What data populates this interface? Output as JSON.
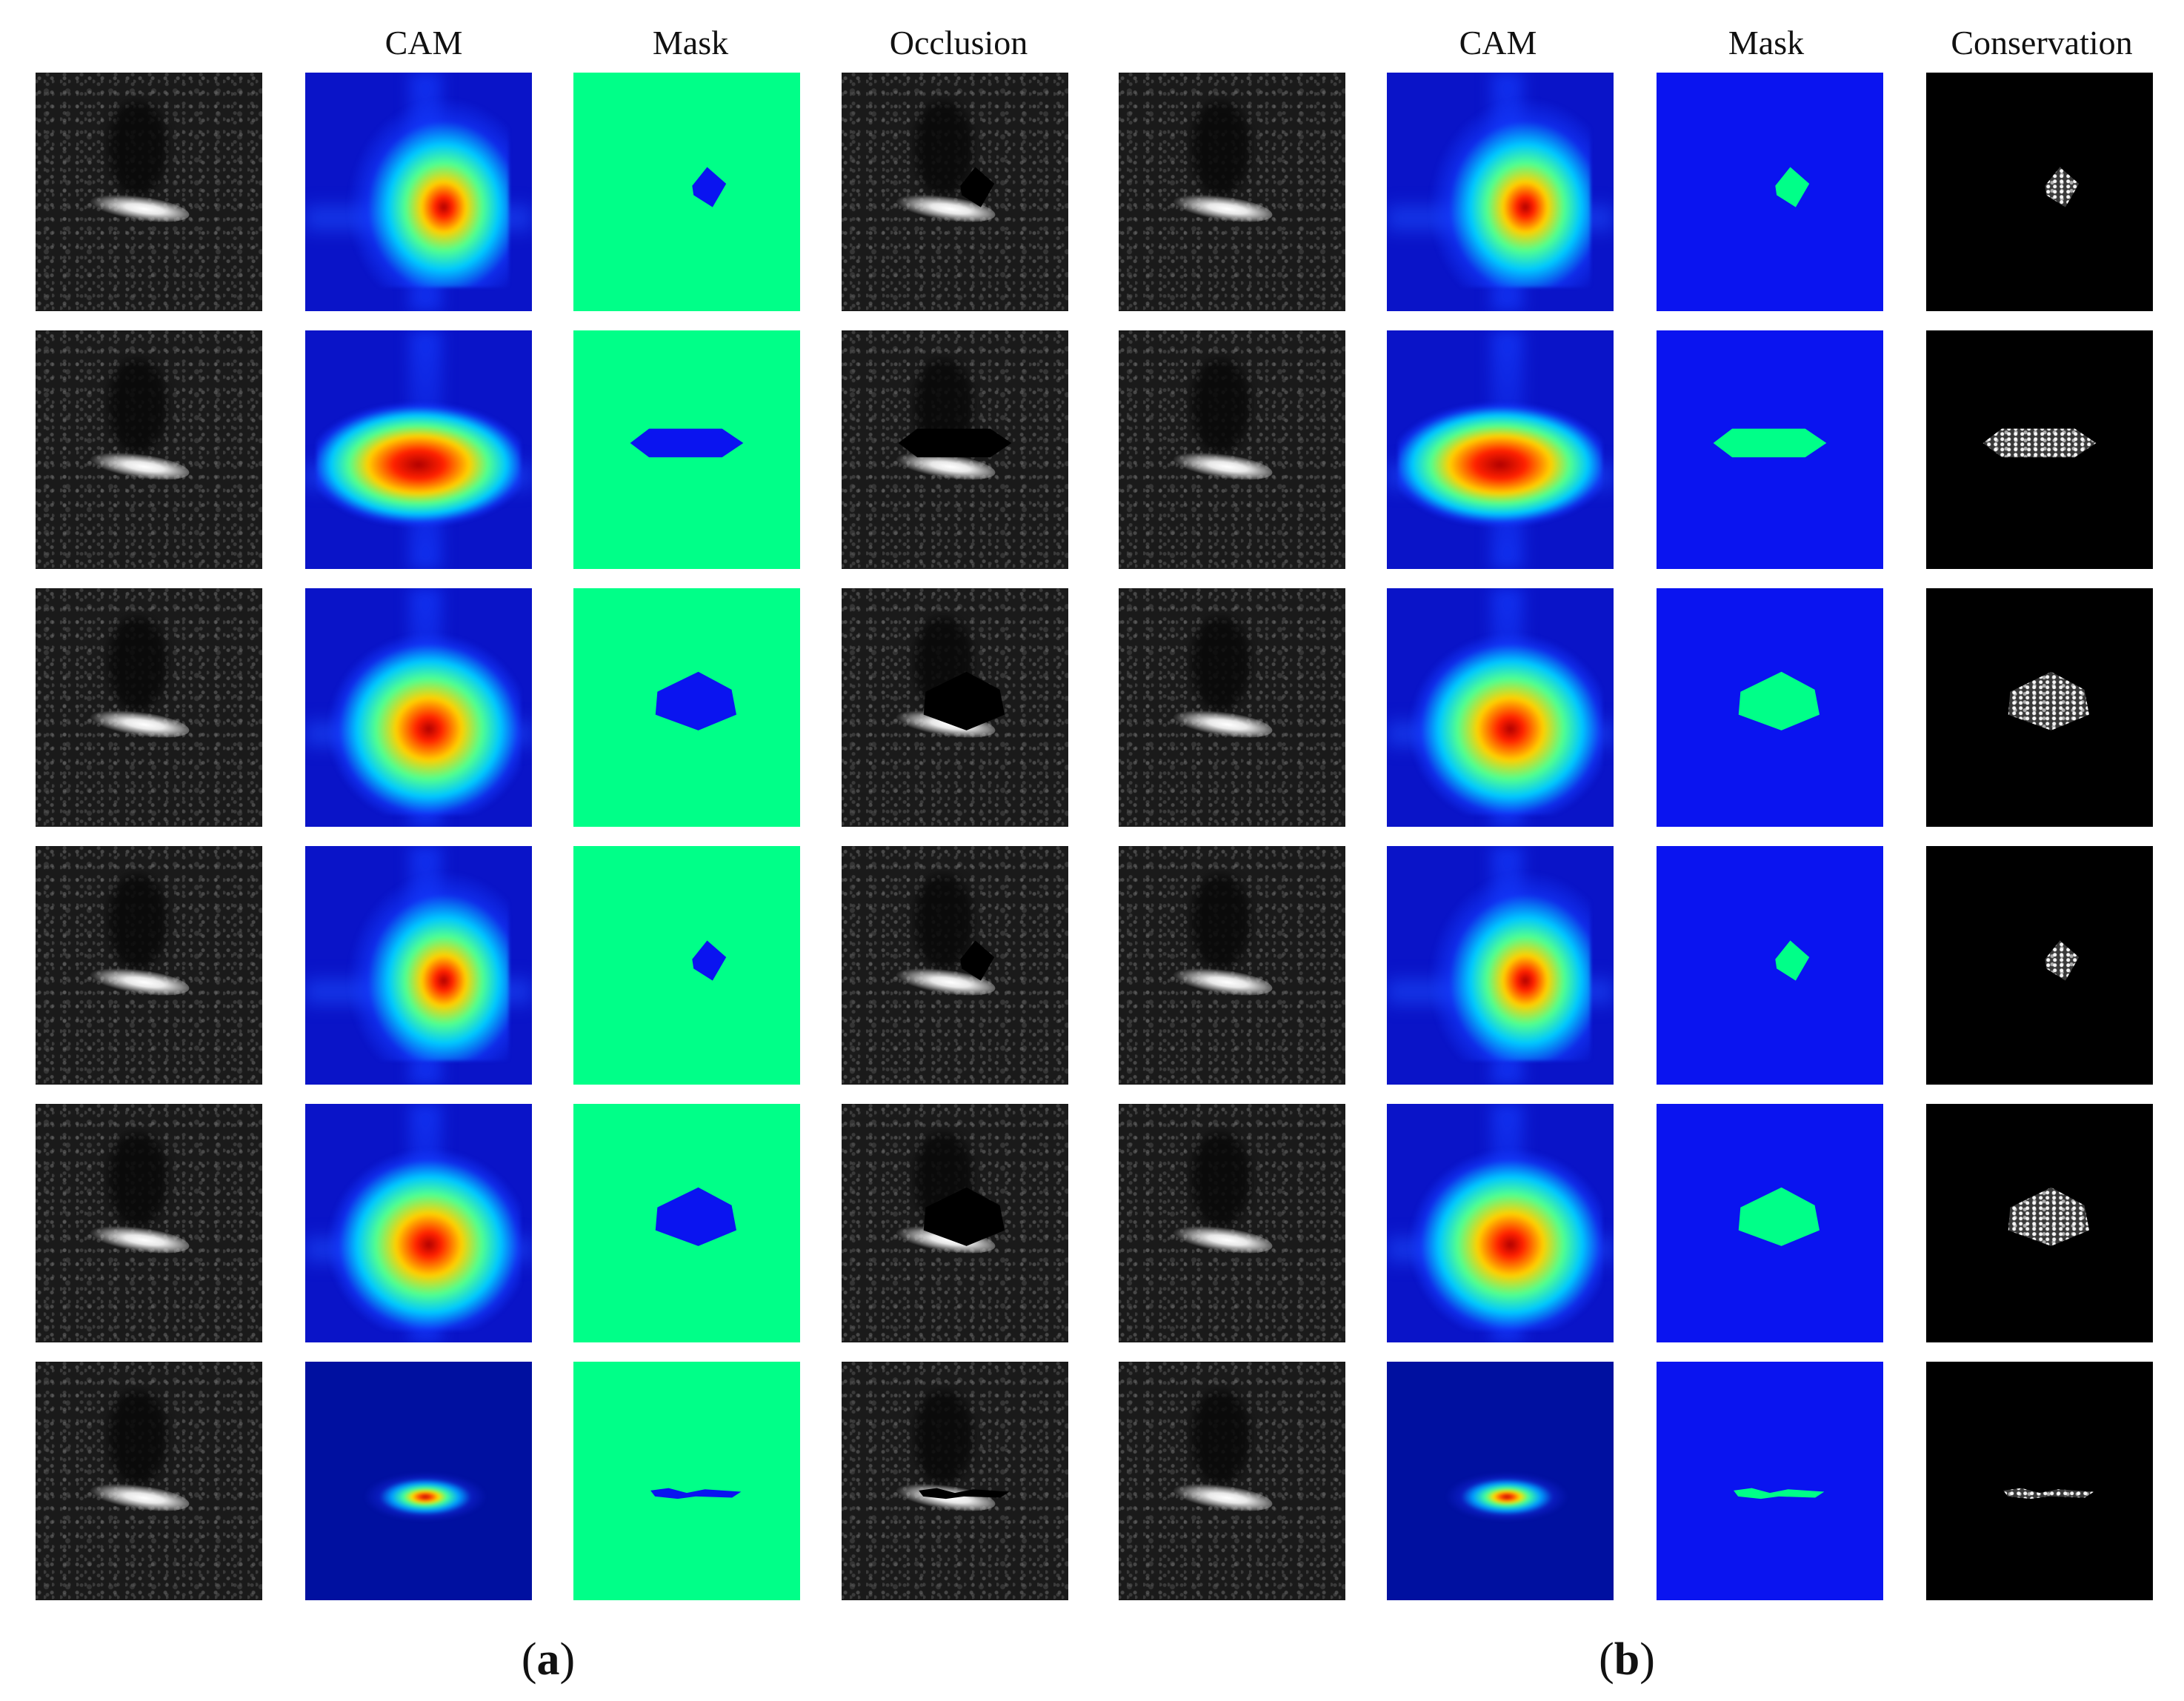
{
  "headers": {
    "panel_a": {
      "cam": "CAM",
      "mask": "Mask",
      "occlusion": "Occlusion"
    },
    "panel_b": {
      "cam": "CAM",
      "mask": "Mask",
      "conservation": "Conservation"
    }
  },
  "captions": {
    "panel_a": "a",
    "panel_b": "b"
  },
  "colors": {
    "mask_green": "#00ff88",
    "mask_blue": "#0a14f0",
    "cam_background": "#0a14c8",
    "cam_peak": "#b00000"
  },
  "rows": [
    {
      "row": 1,
      "cam_pattern": "compact-diamond",
      "mask_shape": "small-diamond"
    },
    {
      "row": 2,
      "cam_pattern": "wide-hexagon",
      "mask_shape": "wide-hexagon"
    },
    {
      "row": 3,
      "cam_pattern": "large-pentagon",
      "mask_shape": "pentagon"
    },
    {
      "row": 4,
      "cam_pattern": "compact-diamond",
      "mask_shape": "small-diamond"
    },
    {
      "row": 5,
      "cam_pattern": "large-pentagon",
      "mask_shape": "pentagon"
    },
    {
      "row": 6,
      "cam_pattern": "scattered-fine",
      "mask_shape": "fragmented-strip"
    }
  ]
}
